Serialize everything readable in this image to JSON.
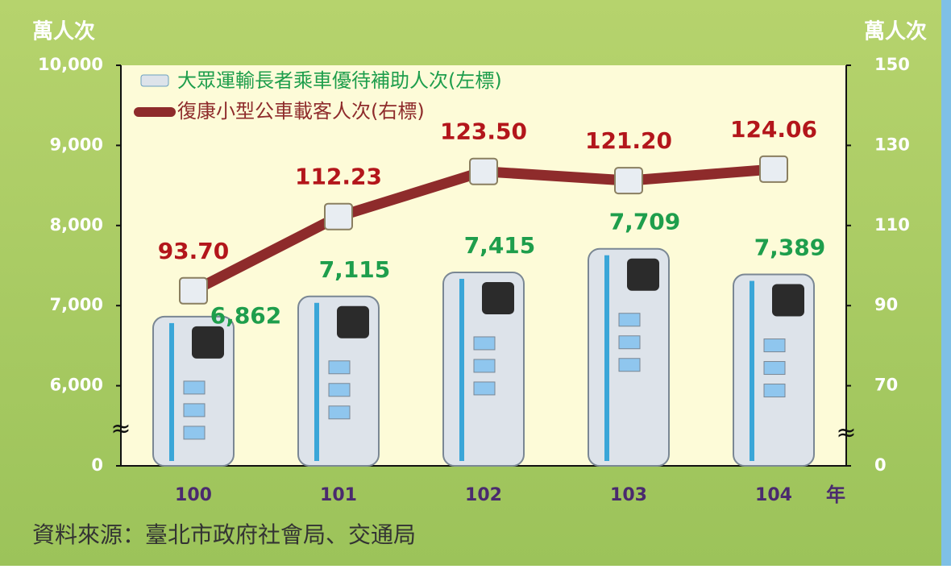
{
  "chart_data": {
    "type": "bar",
    "y_unit": "萬人次",
    "y2_unit": "萬人次",
    "x_unit": "年",
    "source": "資料來源：臺北市政府社會局、交通局",
    "categories": [
      "100",
      "101",
      "102",
      "103",
      "104"
    ],
    "series": [
      {
        "name": "大眾運輸長者乘車優待補助人次(左標)",
        "type": "bar",
        "color": "#dde3ea",
        "values": [
          6862,
          7115,
          7415,
          7709,
          7389
        ],
        "value_labels": [
          "6,862",
          "7,115",
          "7,415",
          "7,709",
          "7,389"
        ]
      },
      {
        "name": "復康小型公車載客人次(右標)",
        "type": "line",
        "color": "#8e2b2b",
        "axis": "y2",
        "values": [
          93.7,
          112.23,
          123.5,
          121.2,
          124.06
        ],
        "value_labels": [
          "93.70",
          "112.23",
          "123.50",
          "121.20",
          "124.06"
        ]
      }
    ],
    "ylim": [
      0,
      10000
    ],
    "yticks": [
      0,
      {
        "value": 6000,
        "label": "6,000"
      },
      {
        "value": 7000,
        "label": "7,000"
      },
      {
        "value": 8000,
        "label": "8,000"
      },
      {
        "value": 9000,
        "label": "9,000"
      },
      {
        "value": 10000,
        "label": "10,000"
      }
    ],
    "y2lim": [
      0,
      150
    ],
    "y2ticks": [
      0,
      70,
      90,
      110,
      130,
      150
    ],
    "axis_break": true
  }
}
